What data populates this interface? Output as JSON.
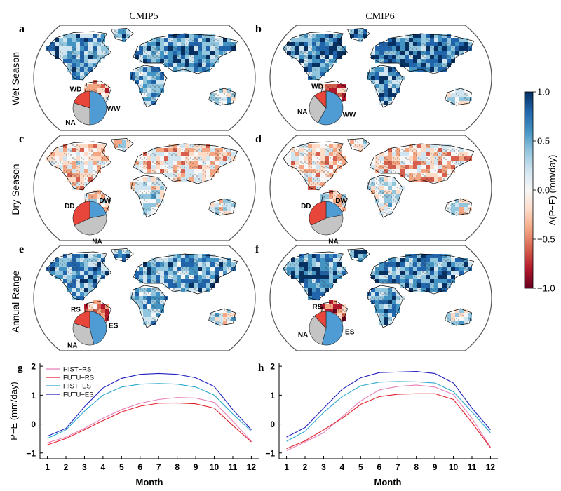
{
  "columns": [
    "CMIP5",
    "CMIP6"
  ],
  "rows": [
    "Wet Season",
    "Dry Season",
    "Annual Range"
  ],
  "panels": [
    {
      "letter": "a",
      "pie": [
        {
          "label": "WW",
          "value": 50,
          "color": "#4f9bd3"
        },
        {
          "label": "NA",
          "value": 30,
          "color": "#c4c4c4"
        },
        {
          "label": "WD",
          "value": 20,
          "color": "#e8463a"
        }
      ]
    },
    {
      "letter": "b",
      "pie": [
        {
          "label": "WW",
          "value": 58,
          "color": "#4f9bd3"
        },
        {
          "label": "NA",
          "value": 30,
          "color": "#c4c4c4"
        },
        {
          "label": "WD",
          "value": 12,
          "color": "#e8463a"
        }
      ]
    },
    {
      "letter": "c",
      "pie": [
        {
          "label": "DW",
          "value": 22,
          "color": "#4f9bd3"
        },
        {
          "label": "NA",
          "value": 46,
          "color": "#c4c4c4"
        },
        {
          "label": "DD",
          "value": 32,
          "color": "#e8463a"
        }
      ]
    },
    {
      "letter": "d",
      "pie": [
        {
          "label": "DW",
          "value": 22,
          "color": "#4f9bd3"
        },
        {
          "label": "NA",
          "value": 46,
          "color": "#c4c4c4"
        },
        {
          "label": "DD",
          "value": 32,
          "color": "#e8463a"
        }
      ]
    },
    {
      "letter": "e",
      "pie": [
        {
          "label": "ES",
          "value": 46,
          "color": "#4f9bd3"
        },
        {
          "label": "NA",
          "value": 34,
          "color": "#c4c4c4"
        },
        {
          "label": "RS",
          "value": 20,
          "color": "#e8463a"
        }
      ]
    },
    {
      "letter": "f",
      "pie": [
        {
          "label": "ES",
          "value": 54,
          "color": "#4f9bd3"
        },
        {
          "label": "NA",
          "value": 34,
          "color": "#c4c4c4"
        },
        {
          "label": "RS",
          "value": 12,
          "color": "#e8463a"
        }
      ]
    }
  ],
  "colorbar": {
    "label": "Δ(P−E) (mm/day)",
    "ticks": [
      "1.0",
      "0.5",
      "0.0",
      "−0.5",
      "−1.0"
    ],
    "tick_values": [
      1.0,
      0.5,
      0.0,
      -0.5,
      -1.0
    ],
    "range": [
      -1.0,
      1.0
    ],
    "colors": [
      "#67001f",
      "#b2182b",
      "#d6604d",
      "#f4a582",
      "#fddbc7",
      "#f7f7f7",
      "#d1e5f0",
      "#92c5de",
      "#4393c3",
      "#2166ac",
      "#053061"
    ]
  },
  "chart_data": [
    {
      "type": "line",
      "panel": "g",
      "x": [
        1,
        2,
        3,
        4,
        5,
        6,
        7,
        8,
        9,
        10,
        11,
        12
      ],
      "xlabel": "Month",
      "ylabel": "P−E (mm/day)",
      "ylim": [
        -1.2,
        2.1
      ],
      "xticks": [
        "1",
        "2",
        "3",
        "4",
        "5",
        "6",
        "7",
        "8",
        "9",
        "10",
        "11",
        "12"
      ],
      "yticks": [
        "−1",
        "0",
        "1",
        "2"
      ],
      "ytick_values": [
        -1,
        0,
        1,
        2
      ],
      "legend_position": "top-left",
      "series": [
        {
          "name": "HIST−RS",
          "color": "#e87fb8",
          "values": [
            -0.65,
            -0.45,
            -0.15,
            0.2,
            0.5,
            0.72,
            0.85,
            0.92,
            0.9,
            0.75,
            0.1,
            -0.6
          ]
        },
        {
          "name": "FUTU−RS",
          "color": "#e0202a",
          "values": [
            -0.72,
            -0.5,
            -0.2,
            0.12,
            0.42,
            0.62,
            0.72,
            0.73,
            0.7,
            0.55,
            -0.05,
            -0.62
          ]
        },
        {
          "name": "HIST−ES",
          "color": "#2aa8cc",
          "values": [
            -0.5,
            -0.2,
            0.45,
            1.0,
            1.28,
            1.38,
            1.4,
            1.38,
            1.28,
            1.0,
            0.35,
            -0.25
          ]
        },
        {
          "name": "FUTU−ES",
          "color": "#2020c0",
          "values": [
            -0.42,
            -0.15,
            0.6,
            1.25,
            1.58,
            1.72,
            1.75,
            1.72,
            1.6,
            1.3,
            0.5,
            -0.2
          ]
        }
      ]
    },
    {
      "type": "line",
      "panel": "h",
      "x": [
        1,
        2,
        3,
        4,
        5,
        6,
        7,
        8,
        9,
        10,
        11,
        12
      ],
      "xlabel": "Month",
      "ylabel": "",
      "ylim": [
        -1.2,
        2.1
      ],
      "xticks": [
        "1",
        "2",
        "3",
        "4",
        "5",
        "6",
        "7",
        "8",
        "9",
        "10",
        "11",
        "12"
      ],
      "yticks": [
        "−1",
        "0",
        "1",
        "2"
      ],
      "ytick_values": [
        -1,
        0,
        1,
        2
      ],
      "series": [
        {
          "name": "HIST−RS",
          "color": "#e87fb8",
          "values": [
            -0.92,
            -0.62,
            -0.3,
            0.25,
            0.8,
            1.18,
            1.3,
            1.35,
            1.28,
            1.02,
            0.2,
            -0.8
          ]
        },
        {
          "name": "FUTU−RS",
          "color": "#e0202a",
          "values": [
            -0.85,
            -0.58,
            -0.2,
            0.2,
            0.68,
            0.95,
            1.03,
            1.05,
            1.05,
            0.85,
            0.05,
            -0.82
          ]
        },
        {
          "name": "HIST−ES",
          "color": "#2aa8cc",
          "values": [
            -0.6,
            -0.25,
            0.4,
            0.95,
            1.32,
            1.45,
            1.47,
            1.46,
            1.42,
            1.12,
            0.42,
            -0.3
          ]
        },
        {
          "name": "FUTU−ES",
          "color": "#2020c0",
          "values": [
            -0.45,
            -0.12,
            0.55,
            1.2,
            1.6,
            1.78,
            1.8,
            1.82,
            1.75,
            1.42,
            0.55,
            -0.2
          ]
        }
      ]
    }
  ]
}
